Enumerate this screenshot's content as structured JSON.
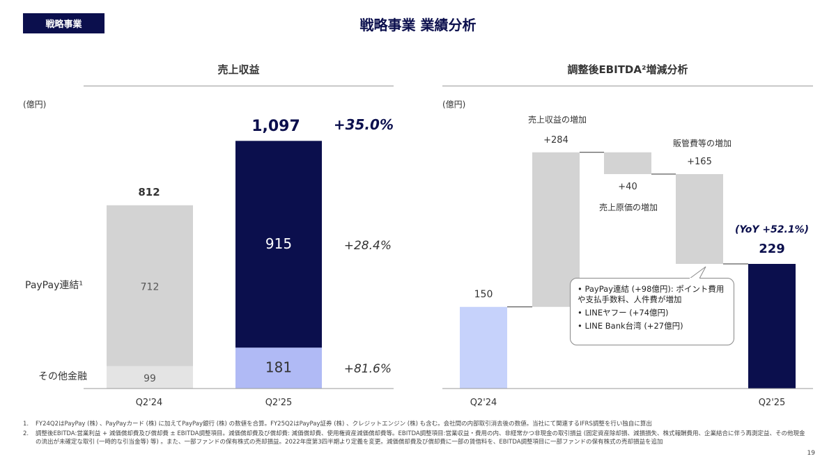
{
  "header": {
    "tag": "戦略事業",
    "title": "戦略事業 業績分析"
  },
  "colors": {
    "navy": "#0b0f4d",
    "gray": "#d3d3d3",
    "lightgray": "#e4e4e4",
    "periwinkle": "#b0baf5",
    "lightblue": "#c6d2fb"
  },
  "chart_data": [
    {
      "type": "bar",
      "stacked": true,
      "title": "売上収益",
      "unit": "(億円)",
      "categories": [
        "Q2'24",
        "Q2'25"
      ],
      "series": [
        {
          "name": "PayPay連結¹",
          "values": [
            712,
            915
          ],
          "growth": "+28.4%"
        },
        {
          "name": "その他金融",
          "values": [
            99,
            181
          ],
          "growth": "+81.6%"
        }
      ],
      "totals": [
        "812",
        "1,097"
      ],
      "total_growth": "+35.0%",
      "ylim": [
        0,
        1150
      ]
    },
    {
      "type": "bar",
      "subtype": "waterfall",
      "title": "調整後EBITDA²増減分析",
      "unit": "(億円)",
      "steps": [
        {
          "label": "Q2'24",
          "value": 150,
          "display": "150",
          "kind": "total",
          "annotation": ""
        },
        {
          "label": "売上収益の増加",
          "value": 284,
          "display": "+284",
          "kind": "increase",
          "annotation": "売上収益の増加"
        },
        {
          "label": "売上原価の増加",
          "value": -40,
          "display": "+40",
          "kind": "decrease",
          "annotation": "売上原価の増加"
        },
        {
          "label": "販管費等の増加",
          "value": -165,
          "display": "+165",
          "kind": "decrease",
          "annotation": "販管費等の増加"
        },
        {
          "label": "Q2'25",
          "value": 229,
          "display": "229",
          "kind": "total",
          "annotation": ""
        }
      ],
      "yoy": "(YoY +52.1%)",
      "callout": [
        "PayPay連結 (+98億円): ポイント費用や支払手数料、人件費が増加",
        "LINEヤフー (+74億円)",
        "LINE Bank台湾 (+27億円)"
      ],
      "ylim": [
        0,
        480
      ]
    }
  ],
  "footnotes": [
    "FY24Q2はPayPay (株) 、PayPayカード (株) に加えてPayPay銀行 (株) の数値を合算。FY25Q2はPayPay証券 (株) 、クレジットエンジン (株) も含む。会社間の内部取引消去後の数値。当社にて関連するIFRS調整を行い独自に算出",
    "調整後EBITDA:営業利益 + 減価償却費及び償却費 ± EBITDA調整項目。減価償却費及び償却費: 減価償却費、使用権資産減価償却費等。EBITDA調整項目:営業収益・費用の内、非経常かつ非現金の取引損益 (固定資産除却損、減損損失、株式報酬費用、企業結合に伴う再測定益、その他現金の流出が未確定な取引 (一時的な引当金等) 等) 。また、一部ファンドの保有株式の売却損益。2022年度第3四半期より定義を変更。減価償却費及び償却費に一部の賃借料を、EBITDA調整項目に一部ファンドの保有株式の売却損益を追加"
  ],
  "page_number": "19"
}
